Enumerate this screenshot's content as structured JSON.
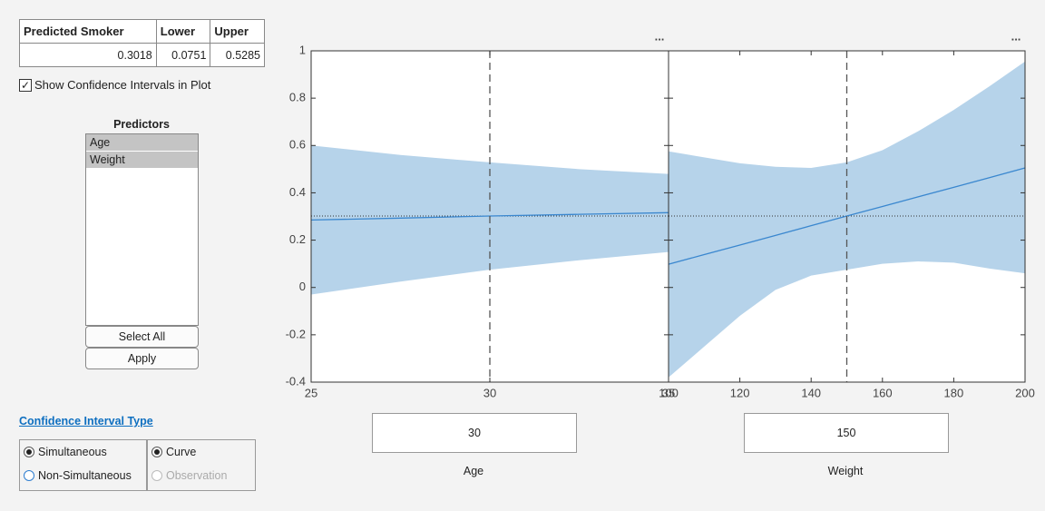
{
  "table": {
    "headers": [
      "Predicted Smoker",
      "Lower",
      "Upper"
    ],
    "values": [
      0.3018,
      0.0751,
      0.5285
    ]
  },
  "checkbox": {
    "label": "Show Confidence Intervals in Plot",
    "checked": true
  },
  "predictors": {
    "title": "Predictors",
    "items": [
      "Age",
      "Weight"
    ]
  },
  "buttons": [
    "Select All",
    "Apply"
  ],
  "ci_type": {
    "title": "Confidence Interval Type",
    "options_a": [
      "Simultaneous",
      "Non-Simultaneous"
    ],
    "options_b": [
      "Curve",
      "Observation"
    ]
  },
  "menu": "...",
  "chart_data": [
    {
      "type": "line",
      "xlabel": "Age",
      "current_x": 30,
      "xlim": [
        25,
        35
      ],
      "xticks": [
        25,
        30,
        35
      ],
      "ylim": [
        -0.4,
        1
      ],
      "yticks": [
        -0.4,
        -0.2,
        0,
        0.2,
        0.4,
        0.6,
        0.8,
        1
      ],
      "x": [
        25,
        27.5,
        30,
        32.5,
        35
      ],
      "series": [
        {
          "color": "#3a87cf",
          "values": [
            0.285,
            0.293,
            0.3018,
            0.309,
            0.316
          ]
        }
      ],
      "band": {
        "color": "#b6d3ea",
        "lower": [
          -0.03,
          0.025,
          0.0751,
          0.115,
          0.15
        ],
        "upper": [
          0.6,
          0.56,
          0.5285,
          0.5,
          0.48
        ]
      }
    },
    {
      "type": "line",
      "xlabel": "Weight",
      "current_x": 150,
      "xlim": [
        100,
        200
      ],
      "xticks": [
        100,
        120,
        140,
        160,
        180,
        200
      ],
      "ylim": [
        -0.4,
        1
      ],
      "yticks": [
        -0.4,
        -0.2,
        0,
        0.2,
        0.4,
        0.6,
        0.8,
        1
      ],
      "x": [
        100,
        110,
        120,
        130,
        140,
        150,
        160,
        170,
        180,
        190,
        200
      ],
      "series": [
        {
          "color": "#3a87cf",
          "values": [
            0.098,
            0.139,
            0.179,
            0.22,
            0.261,
            0.3018,
            0.342,
            0.383,
            0.423,
            0.464,
            0.505
          ]
        }
      ],
      "band": {
        "color": "#b6d3ea",
        "lower": [
          -0.38,
          -0.25,
          -0.12,
          -0.01,
          0.05,
          0.0751,
          0.1,
          0.11,
          0.105,
          0.08,
          0.06
        ],
        "upper": [
          0.575,
          0.55,
          0.525,
          0.51,
          0.505,
          0.5285,
          0.58,
          0.66,
          0.75,
          0.85,
          0.955
        ]
      }
    }
  ]
}
